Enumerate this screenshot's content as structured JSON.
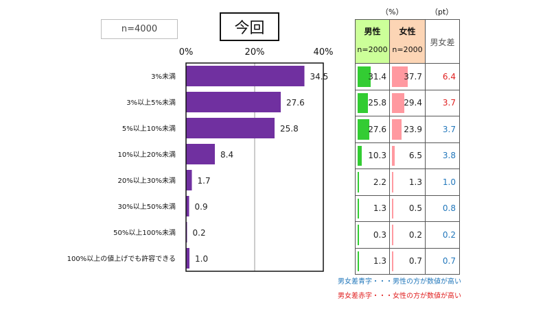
{
  "sample_label": "n=4000",
  "title": "今回",
  "units": {
    "percent": "（%）",
    "point": "（pt）"
  },
  "colors": {
    "bar": "#7030a0",
    "male": "#33cc33",
    "female": "#ff99a0",
    "blue": "#2277bb",
    "red": "#e02020"
  },
  "chart_data": {
    "type": "bar",
    "orientation": "horizontal",
    "categories": [
      "3%未満",
      "3%以上5%未満",
      "5%以上10%未満",
      "10%以上20%未満",
      "20%以上30%未満",
      "30%以上50%未満",
      "50%以上100%未満",
      "100%以上の値上げでも許容できる"
    ],
    "values": [
      34.5,
      27.6,
      25.8,
      8.4,
      1.7,
      0.9,
      0.2,
      1.0
    ],
    "xlim": [
      0,
      40
    ],
    "xticks": [
      "0%",
      "20%",
      "40%"
    ],
    "grid": true
  },
  "table": {
    "male_header": "男性",
    "male_n": "n=2000",
    "female_header": "女性",
    "female_n": "n=2000",
    "diff_header": "男女差",
    "rows": [
      {
        "male": 31.4,
        "female": 37.7,
        "diff": "6.4",
        "diff_color": "red"
      },
      {
        "male": 25.8,
        "female": 29.4,
        "diff": "3.7",
        "diff_color": "red"
      },
      {
        "male": 27.6,
        "female": 23.9,
        "diff": "3.7",
        "diff_color": "blue"
      },
      {
        "male": 10.3,
        "female": 6.5,
        "diff": "3.8",
        "diff_color": "blue"
      },
      {
        "male": 2.2,
        "female": 1.3,
        "diff": "1.0",
        "diff_color": "blue"
      },
      {
        "male": 1.3,
        "female": 0.5,
        "diff": "0.8",
        "diff_color": "blue"
      },
      {
        "male": 0.3,
        "female": 0.2,
        "diff": "0.2",
        "diff_color": "blue"
      },
      {
        "male": 1.3,
        "female": 0.7,
        "diff": "0.7",
        "diff_color": "blue"
      }
    ]
  },
  "notes": {
    "blue": "男女差青字・・・男性の方が数値が高い",
    "red": "男女差赤字・・・女性の方が数値が高い"
  }
}
